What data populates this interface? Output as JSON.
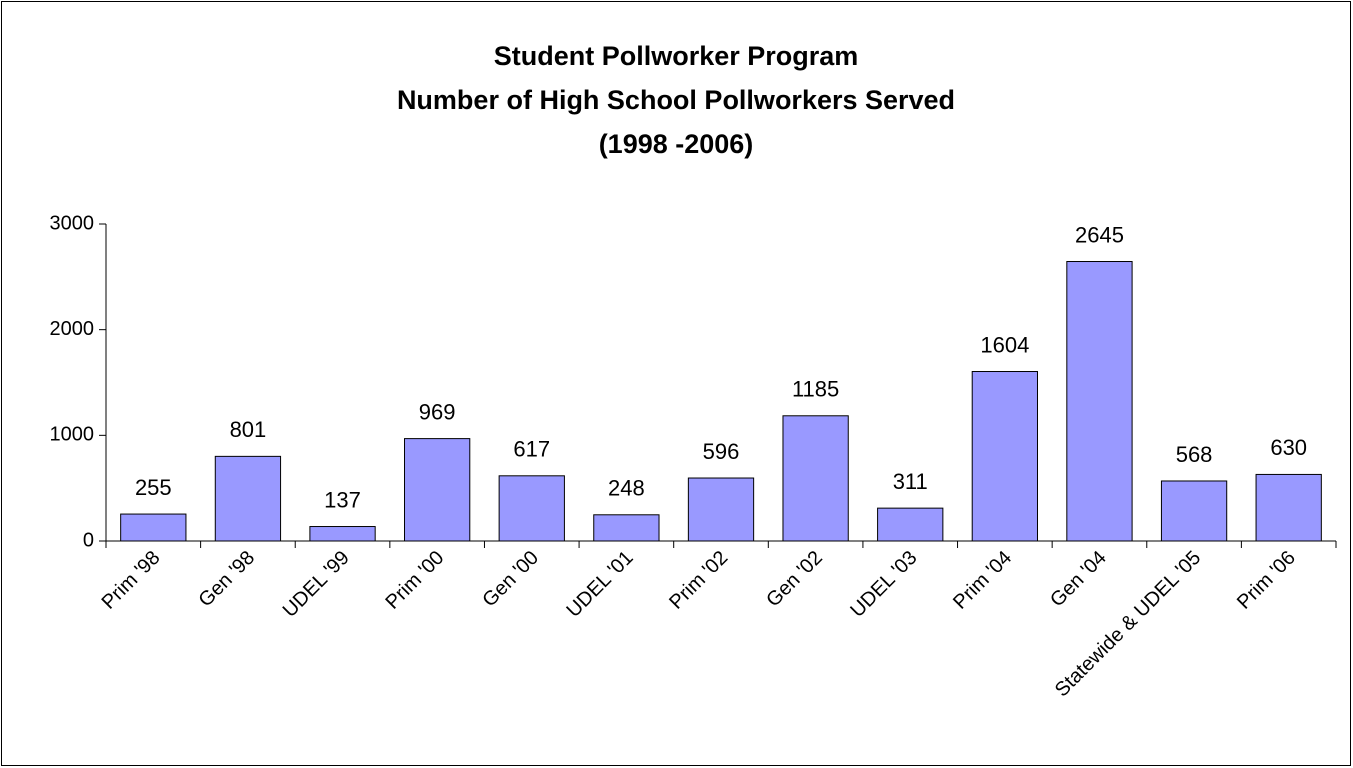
{
  "chart_data": {
    "type": "bar",
    "title": [
      "Student Pollworker Program",
      "Number of High School Pollworkers Served",
      "(1998 -2006)"
    ],
    "categories": [
      "Prim '98",
      "Gen '98",
      "UDEL '99",
      "Prim '00",
      "Gen '00",
      "UDEL '01",
      "Prim '02",
      "Gen '02",
      "UDEL '03",
      "Prim '04",
      "Gen '04",
      "Statewide & UDEL '05",
      "Prim '06"
    ],
    "values": [
      255,
      801,
      137,
      969,
      617,
      248,
      596,
      1185,
      311,
      1604,
      2645,
      568,
      630
    ],
    "color": "#9999ff",
    "ylim": [
      0,
      3000
    ],
    "yticks": [
      0,
      1000,
      2000,
      3000
    ],
    "grid": false
  }
}
